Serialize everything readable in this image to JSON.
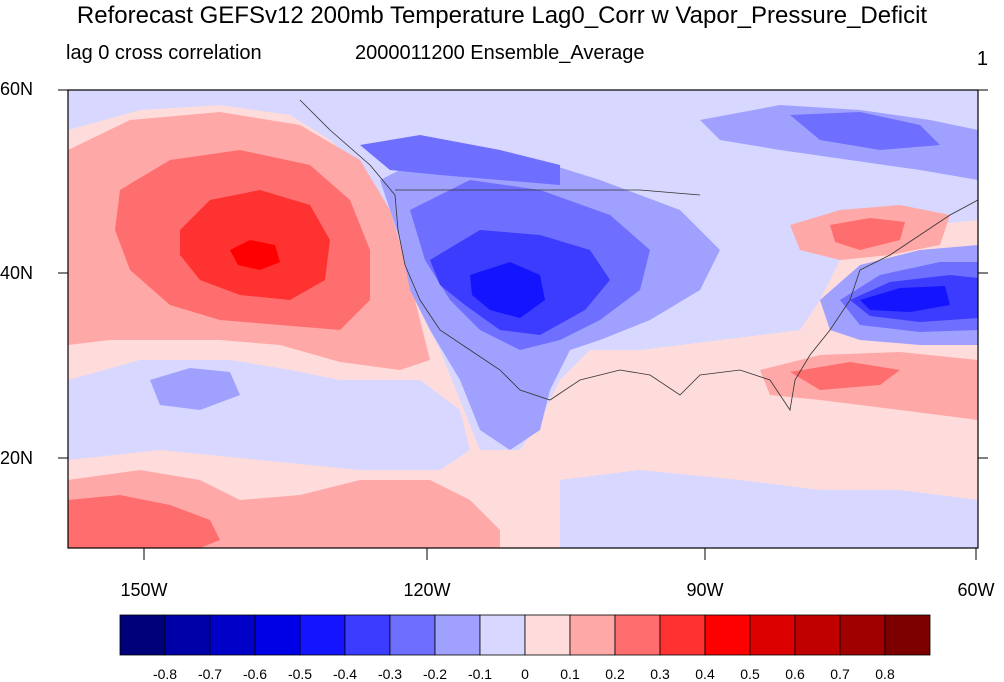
{
  "title": "Reforecast GEFSv12 200mb Temperature Lag0_Corr w Vapor_Pressure_Deficit",
  "subtitle_left": "lag 0 cross correlation",
  "subtitle_center": "2000011200 Ensemble_Average",
  "subtitle_right": "1",
  "lat_labels": [
    "60N",
    "40N",
    "20N"
  ],
  "lon_labels": [
    "150W",
    "120W",
    "90W",
    "60W"
  ],
  "colorbar": {
    "colors": [
      "#00007a",
      "#0000a8",
      "#0000c8",
      "#0000e6",
      "#1414ff",
      "#3c3cff",
      "#6e6eff",
      "#a0a0ff",
      "#d7d7ff",
      "#ffdcdc",
      "#ffa8a8",
      "#ff6e6e",
      "#ff3232",
      "#ff0000",
      "#dc0000",
      "#c00000",
      "#a00000",
      "#7c0000"
    ],
    "labels": [
      "-0.8",
      "-0.7",
      "-0.6",
      "-0.5",
      "-0.4",
      "-0.3",
      "-0.2",
      "-0.1",
      "0",
      "0.1",
      "0.2",
      "0.3",
      "0.4",
      "0.5",
      "0.6",
      "0.7",
      "0.8"
    ]
  },
  "field_colors": {
    "neutral_pos": "#ffdcdc",
    "neutral_neg": "#d7d7ff",
    "pos1": "#ffa8a8",
    "pos2": "#ff6e6e",
    "pos3": "#ff3232",
    "pos4": "#ff0000",
    "neg1": "#a0a0ff",
    "neg2": "#6e6eff",
    "neg3": "#3c3cff",
    "neg4": "#1414ff"
  }
}
